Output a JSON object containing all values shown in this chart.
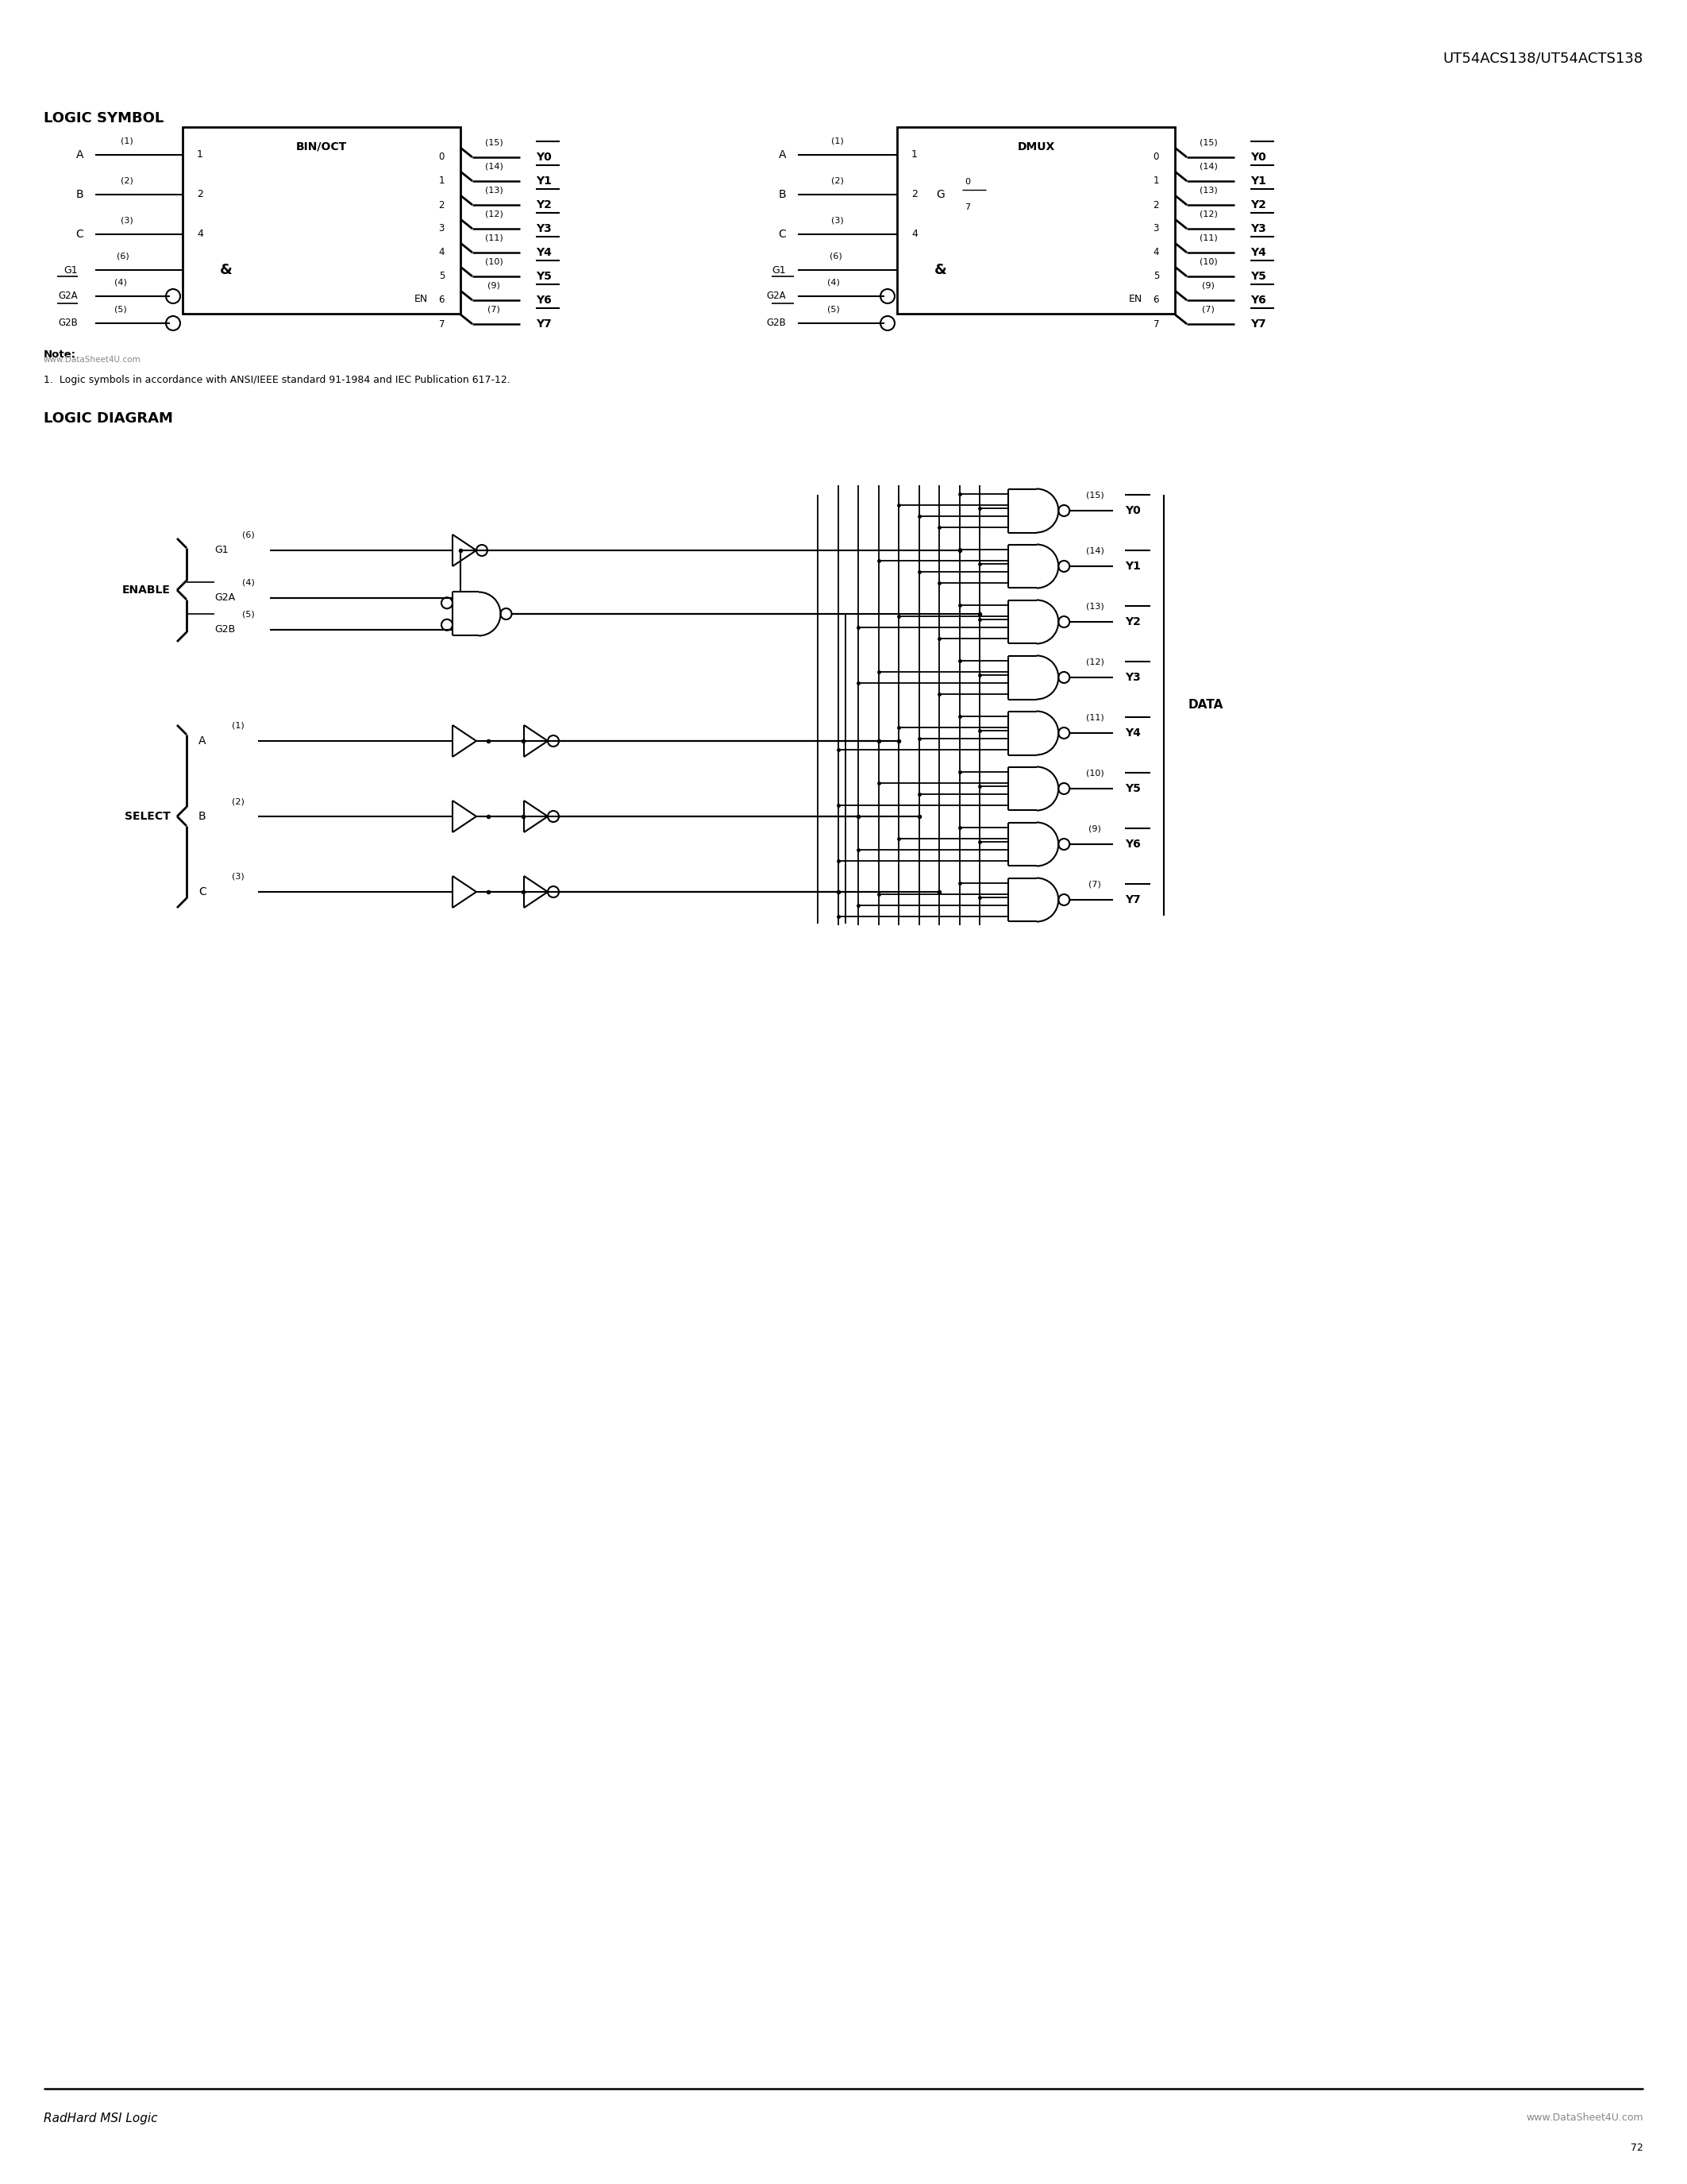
{
  "title": "UT54ACS138/UT54ACTS138",
  "section1": "LOGIC SYMBOL",
  "section2": "LOGIC DIAGRAM",
  "footer_left": "RadHard MSI Logic",
  "footer_right": "www.DataSheet4U.com",
  "watermark": "www.DataSheet4U.com",
  "page_number": "72",
  "note_bold": "Note:",
  "note_text": "1.  Logic symbols in accordance with ANSI/IEEE standard 91-1984 and IEC Publication 617-12.",
  "outputs": [
    [
      0,
      15,
      "Y0"
    ],
    [
      1,
      14,
      "Y1"
    ],
    [
      2,
      13,
      "Y2"
    ],
    [
      3,
      12,
      "Y3"
    ],
    [
      4,
      11,
      "Y4"
    ],
    [
      5,
      10,
      "Y5"
    ],
    [
      6,
      9,
      "Y6"
    ],
    [
      7,
      7,
      "Y7"
    ]
  ],
  "y_pins": [
    15,
    14,
    13,
    12,
    11,
    10,
    9,
    7
  ],
  "y_labels": [
    "Y0",
    "Y1",
    "Y2",
    "Y3",
    "Y4",
    "Y5",
    "Y6",
    "Y7"
  ]
}
